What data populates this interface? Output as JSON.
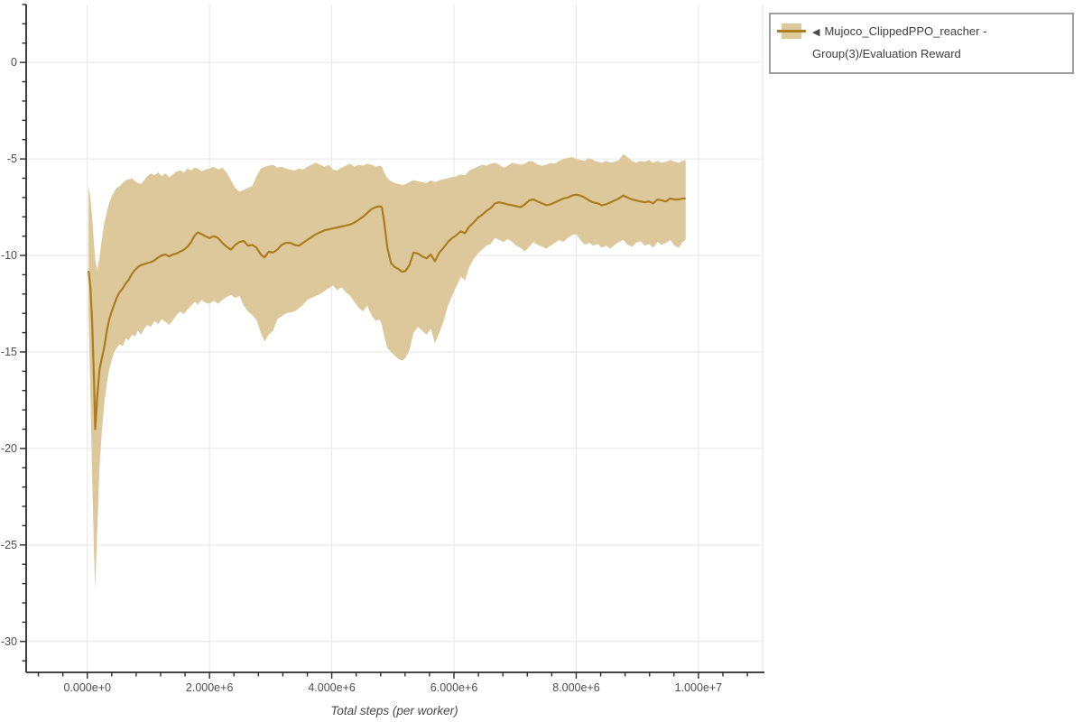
{
  "page": {
    "background": "#ffffff"
  },
  "colors": {
    "line": "#ab7d1e",
    "band": "#ddc89c",
    "grid": "#e6e6e6",
    "axis": "#2b2b2b",
    "tick_label": "#4d4d4d",
    "axis_title": "#4a4a4a",
    "legend_border": "#9e9e9e",
    "legend_text": "#3d3d3d"
  },
  "legend": {
    "marker_glyph": "◀",
    "label": "Mujoco_ClippedPPO_reacher - Group(3)/Evaluation Reward",
    "swatch_fill": "#ddc89c",
    "swatch_line": "#ab7d1e"
  },
  "chart_data": {
    "type": "line",
    "title": "",
    "xlabel": "Total steps (per worker)",
    "ylabel": "",
    "xlim": [
      -1000000,
      11050000
    ],
    "ylim": [
      -31.6,
      3.0
    ],
    "grid": true,
    "legend_position": "top-right",
    "x_ticks": {
      "minor_step": 400000,
      "major": [
        {
          "value": 0,
          "label": "0.000e+0"
        },
        {
          "value": 2000000,
          "label": "2.000e+6"
        },
        {
          "value": 4000000,
          "label": "4.000e+6"
        },
        {
          "value": 6000000,
          "label": "6.000e+6"
        },
        {
          "value": 8000000,
          "label": "8.000e+6"
        },
        {
          "value": 10000000,
          "label": "1.000e+7"
        }
      ]
    },
    "y_ticks": {
      "minor_step": 1,
      "major": [
        {
          "value": 0,
          "label": "0"
        },
        {
          "value": -5,
          "label": "-5"
        },
        {
          "value": -10,
          "label": "-10"
        },
        {
          "value": -15,
          "label": "-15"
        },
        {
          "value": -20,
          "label": "-20"
        },
        {
          "value": -25,
          "label": "-25"
        },
        {
          "value": -30,
          "label": "-30"
        }
      ]
    },
    "series": [
      {
        "name": "Mujoco_ClippedPPO_reacher - Group(3)/Evaluation Reward",
        "color": "#ab7d1e",
        "band_color": "#ddc89c",
        "x_steps_millions": [
          0.02,
          0.05,
          0.08,
          0.11,
          0.13,
          0.16,
          0.2,
          0.24,
          0.28,
          0.32,
          0.36,
          0.4,
          0.44,
          0.48,
          0.53,
          0.58,
          0.63,
          0.68,
          0.73,
          0.78,
          0.83,
          0.88,
          0.93,
          0.98,
          1.04,
          1.1,
          1.16,
          1.22,
          1.28,
          1.34,
          1.4,
          1.46,
          1.52,
          1.58,
          1.64,
          1.7,
          1.76,
          1.81,
          1.87,
          1.93,
          2.0,
          2.07,
          2.14,
          2.21,
          2.28,
          2.35,
          2.42,
          2.49,
          2.56,
          2.63,
          2.7,
          2.77,
          2.84,
          2.9,
          2.97,
          3.04,
          3.11,
          3.18,
          3.25,
          3.32,
          3.39,
          3.46,
          3.53,
          3.6,
          3.67,
          3.74,
          3.81,
          3.88,
          3.95,
          4.02,
          4.09,
          4.16,
          4.23,
          4.3,
          4.37,
          4.44,
          4.51,
          4.58,
          4.65,
          4.72,
          4.78,
          4.82,
          4.86,
          4.91,
          4.97,
          5.03,
          5.09,
          5.15,
          5.21,
          5.27,
          5.34,
          5.41,
          5.48,
          5.55,
          5.62,
          5.69,
          5.76,
          5.83,
          5.9,
          5.97,
          6.04,
          6.11,
          6.18,
          6.25,
          6.32,
          6.39,
          6.46,
          6.53,
          6.6,
          6.67,
          6.74,
          6.81,
          6.88,
          6.95,
          7.02,
          7.09,
          7.16,
          7.23,
          7.3,
          7.37,
          7.44,
          7.51,
          7.58,
          7.65,
          7.72,
          7.79,
          7.86,
          7.93,
          8.0,
          8.07,
          8.14,
          8.21,
          8.28,
          8.35,
          8.42,
          8.49,
          8.56,
          8.63,
          8.7,
          8.77,
          8.84,
          8.91,
          8.98,
          9.05,
          9.12,
          9.19,
          9.26,
          9.33,
          9.4,
          9.47,
          9.54,
          9.61,
          9.68,
          9.74,
          9.79
        ],
        "mean": [
          -10.8,
          -11.6,
          -13.4,
          -16.5,
          -19.0,
          -17.4,
          -15.9,
          -15.3,
          -14.7,
          -13.9,
          -13.3,
          -12.9,
          -12.55,
          -12.2,
          -11.9,
          -11.7,
          -11.45,
          -11.25,
          -10.95,
          -10.75,
          -10.6,
          -10.5,
          -10.45,
          -10.4,
          -10.35,
          -10.25,
          -10.1,
          -10.0,
          -9.95,
          -10.05,
          -9.95,
          -9.9,
          -9.8,
          -9.7,
          -9.55,
          -9.3,
          -8.95,
          -8.8,
          -8.9,
          -9.0,
          -9.1,
          -9.0,
          -9.1,
          -9.35,
          -9.55,
          -9.7,
          -9.45,
          -9.3,
          -9.25,
          -9.5,
          -9.45,
          -9.6,
          -9.95,
          -10.1,
          -9.8,
          -9.85,
          -9.7,
          -9.45,
          -9.35,
          -9.35,
          -9.45,
          -9.5,
          -9.35,
          -9.2,
          -9.05,
          -8.9,
          -8.8,
          -8.7,
          -8.65,
          -8.6,
          -8.55,
          -8.5,
          -8.45,
          -8.4,
          -8.3,
          -8.15,
          -8.0,
          -7.8,
          -7.6,
          -7.5,
          -7.45,
          -7.5,
          -8.3,
          -9.6,
          -10.4,
          -10.6,
          -10.7,
          -10.85,
          -10.8,
          -10.5,
          -9.85,
          -9.9,
          -10.05,
          -10.15,
          -9.95,
          -10.3,
          -9.85,
          -9.6,
          -9.3,
          -9.1,
          -8.95,
          -8.75,
          -8.85,
          -8.5,
          -8.3,
          -8.05,
          -7.9,
          -7.7,
          -7.55,
          -7.3,
          -7.25,
          -7.3,
          -7.35,
          -7.4,
          -7.45,
          -7.5,
          -7.35,
          -7.15,
          -7.1,
          -7.2,
          -7.3,
          -7.4,
          -7.35,
          -7.25,
          -7.15,
          -7.05,
          -7.0,
          -6.9,
          -6.85,
          -6.9,
          -7.0,
          -7.15,
          -7.25,
          -7.3,
          -7.4,
          -7.35,
          -7.25,
          -7.15,
          -7.05,
          -6.9,
          -7.0,
          -7.1,
          -7.15,
          -7.2,
          -7.25,
          -7.2,
          -7.3,
          -7.1,
          -7.15,
          -7.2,
          -7.05,
          -7.1,
          -7.1,
          -7.05,
          -7.05
        ],
        "band_lower": [
          -13.0,
          -17.0,
          -21.5,
          -25.5,
          -27.3,
          -24.5,
          -21.0,
          -19.0,
          -17.6,
          -16.6,
          -15.9,
          -15.4,
          -15.0,
          -14.8,
          -14.6,
          -14.7,
          -14.3,
          -14.4,
          -14.1,
          -14.2,
          -13.9,
          -14.1,
          -13.8,
          -13.6,
          -13.7,
          -13.4,
          -13.55,
          -13.3,
          -13.45,
          -13.6,
          -13.35,
          -13.1,
          -12.9,
          -13.05,
          -12.8,
          -12.6,
          -12.4,
          -12.55,
          -12.3,
          -12.45,
          -12.5,
          -12.35,
          -12.5,
          -12.3,
          -12.15,
          -12.05,
          -12.2,
          -12.1,
          -12.6,
          -12.9,
          -13.1,
          -13.35,
          -14.0,
          -14.45,
          -14.1,
          -13.9,
          -13.3,
          -13.15,
          -13.0,
          -12.95,
          -12.9,
          -12.75,
          -12.55,
          -12.3,
          -12.2,
          -12.1,
          -12.0,
          -11.85,
          -11.7,
          -11.55,
          -11.8,
          -11.65,
          -11.9,
          -12.1,
          -12.4,
          -12.7,
          -12.9,
          -12.6,
          -13.1,
          -13.4,
          -13.3,
          -13.6,
          -14.2,
          -14.8,
          -15.0,
          -15.2,
          -15.35,
          -15.45,
          -15.3,
          -14.9,
          -14.0,
          -13.7,
          -13.9,
          -14.1,
          -13.8,
          -14.55,
          -14.0,
          -13.4,
          -12.6,
          -12.1,
          -11.6,
          -11.1,
          -11.3,
          -10.6,
          -10.2,
          -9.9,
          -9.7,
          -9.5,
          -9.4,
          -9.1,
          -9.2,
          -9.3,
          -9.15,
          -9.3,
          -9.5,
          -9.6,
          -9.8,
          -9.55,
          -9.3,
          -9.45,
          -9.55,
          -9.65,
          -9.5,
          -9.35,
          -9.2,
          -9.3,
          -9.1,
          -8.95,
          -8.9,
          -9.2,
          -9.45,
          -9.35,
          -9.5,
          -9.4,
          -9.6,
          -9.5,
          -9.65,
          -9.45,
          -9.3,
          -9.2,
          -9.45,
          -9.55,
          -9.35,
          -9.25,
          -9.5,
          -9.4,
          -9.6,
          -9.3,
          -9.45,
          -9.35,
          -9.2,
          -9.5,
          -9.6,
          -9.3,
          -9.2
        ],
        "band_upper": [
          -6.4,
          -7.0,
          -8.0,
          -9.4,
          -10.2,
          -10.8,
          -10.1,
          -9.1,
          -8.3,
          -7.75,
          -7.25,
          -6.95,
          -6.7,
          -6.5,
          -6.4,
          -6.25,
          -6.1,
          -6.05,
          -6.0,
          -6.15,
          -6.25,
          -6.3,
          -6.1,
          -5.9,
          -5.75,
          -5.85,
          -5.7,
          -5.9,
          -5.75,
          -5.95,
          -5.8,
          -5.65,
          -5.6,
          -5.7,
          -5.5,
          -5.6,
          -5.45,
          -5.5,
          -5.65,
          -5.55,
          -5.5,
          -5.4,
          -5.55,
          -5.45,
          -5.7,
          -6.1,
          -6.5,
          -6.7,
          -6.6,
          -6.5,
          -6.4,
          -5.9,
          -5.5,
          -5.4,
          -5.35,
          -5.3,
          -5.45,
          -5.4,
          -5.5,
          -5.55,
          -5.6,
          -5.5,
          -5.55,
          -5.4,
          -5.3,
          -5.2,
          -5.3,
          -5.4,
          -5.3,
          -5.55,
          -5.6,
          -5.45,
          -5.35,
          -5.25,
          -5.4,
          -5.3,
          -5.35,
          -5.25,
          -5.3,
          -5.4,
          -5.35,
          -5.4,
          -5.7,
          -6.0,
          -6.15,
          -6.25,
          -6.3,
          -6.35,
          -6.3,
          -6.2,
          -6.1,
          -6.15,
          -6.2,
          -6.25,
          -6.1,
          -6.2,
          -6.1,
          -6.05,
          -6.0,
          -5.95,
          -5.9,
          -5.8,
          -5.85,
          -5.6,
          -5.5,
          -5.4,
          -5.3,
          -5.35,
          -5.25,
          -5.2,
          -5.3,
          -5.45,
          -5.35,
          -5.2,
          -5.25,
          -5.3,
          -5.25,
          -5.1,
          -5.15,
          -5.3,
          -5.35,
          -5.3,
          -5.2,
          -5.25,
          -5.1,
          -5.0,
          -4.95,
          -4.9,
          -5.0,
          -5.05,
          -5.1,
          -4.95,
          -5.05,
          -5.15,
          -5.2,
          -5.1,
          -5.2,
          -5.15,
          -5.05,
          -4.75,
          -4.9,
          -5.1,
          -5.2,
          -5.1,
          -5.15,
          -5.05,
          -5.2,
          -5.1,
          -5.2,
          -5.15,
          -5.05,
          -5.15,
          -5.2,
          -5.1,
          -5.05
        ]
      }
    ]
  }
}
